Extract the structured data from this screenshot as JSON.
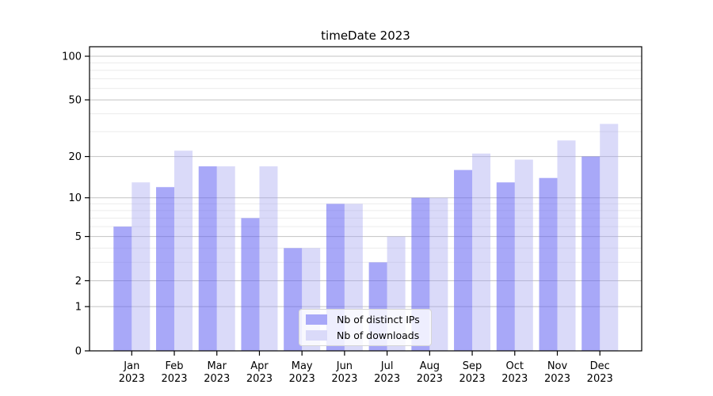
{
  "chart_data": {
    "type": "bar",
    "title": "timeDate 2023",
    "categories": [
      "Jan 2023",
      "Feb 2023",
      "Mar 2023",
      "Apr 2023",
      "May 2023",
      "Jun 2023",
      "Jul 2023",
      "Aug 2023",
      "Sep 2023",
      "Oct 2023",
      "Nov 2023",
      "Dec 2023"
    ],
    "x_tick_line1": [
      "Jan",
      "Feb",
      "Mar",
      "Apr",
      "May",
      "Jun",
      "Jul",
      "Aug",
      "Sep",
      "Oct",
      "Nov",
      "Dec"
    ],
    "x_tick_line2": "2023",
    "series": [
      {
        "name": "Nb of distinct IPs",
        "color": "#a8a8f8",
        "fill_rgba": "rgba(97,97,242,0.55)",
        "values": [
          6,
          12,
          17,
          7,
          4,
          9,
          3,
          10,
          16,
          13,
          14,
          20
        ]
      },
      {
        "name": "Nb of downloads",
        "color": "#dadaf9",
        "fill_rgba": "rgba(162,162,240,0.40)",
        "values": [
          13,
          22,
          17,
          17,
          4,
          9,
          5,
          10,
          21,
          19,
          26,
          34
        ]
      }
    ],
    "yscale": "symlog",
    "y_ticks": [
      0,
      1,
      2,
      5,
      10,
      20,
      50,
      100
    ],
    "y_minor_gridlines": [
      3,
      4,
      6,
      7,
      8,
      9,
      30,
      40,
      60,
      70,
      80,
      90
    ],
    "ylim": [
      0,
      115
    ],
    "xlabel": "",
    "ylabel": "",
    "grid": "horizontal major+minor",
    "legend_position": "lower center",
    "colors": {
      "grid_major": "#c3c3c3",
      "grid_minor": "#ececec",
      "axis": "#000000",
      "background": "#ffffff",
      "text": "#000000"
    }
  }
}
